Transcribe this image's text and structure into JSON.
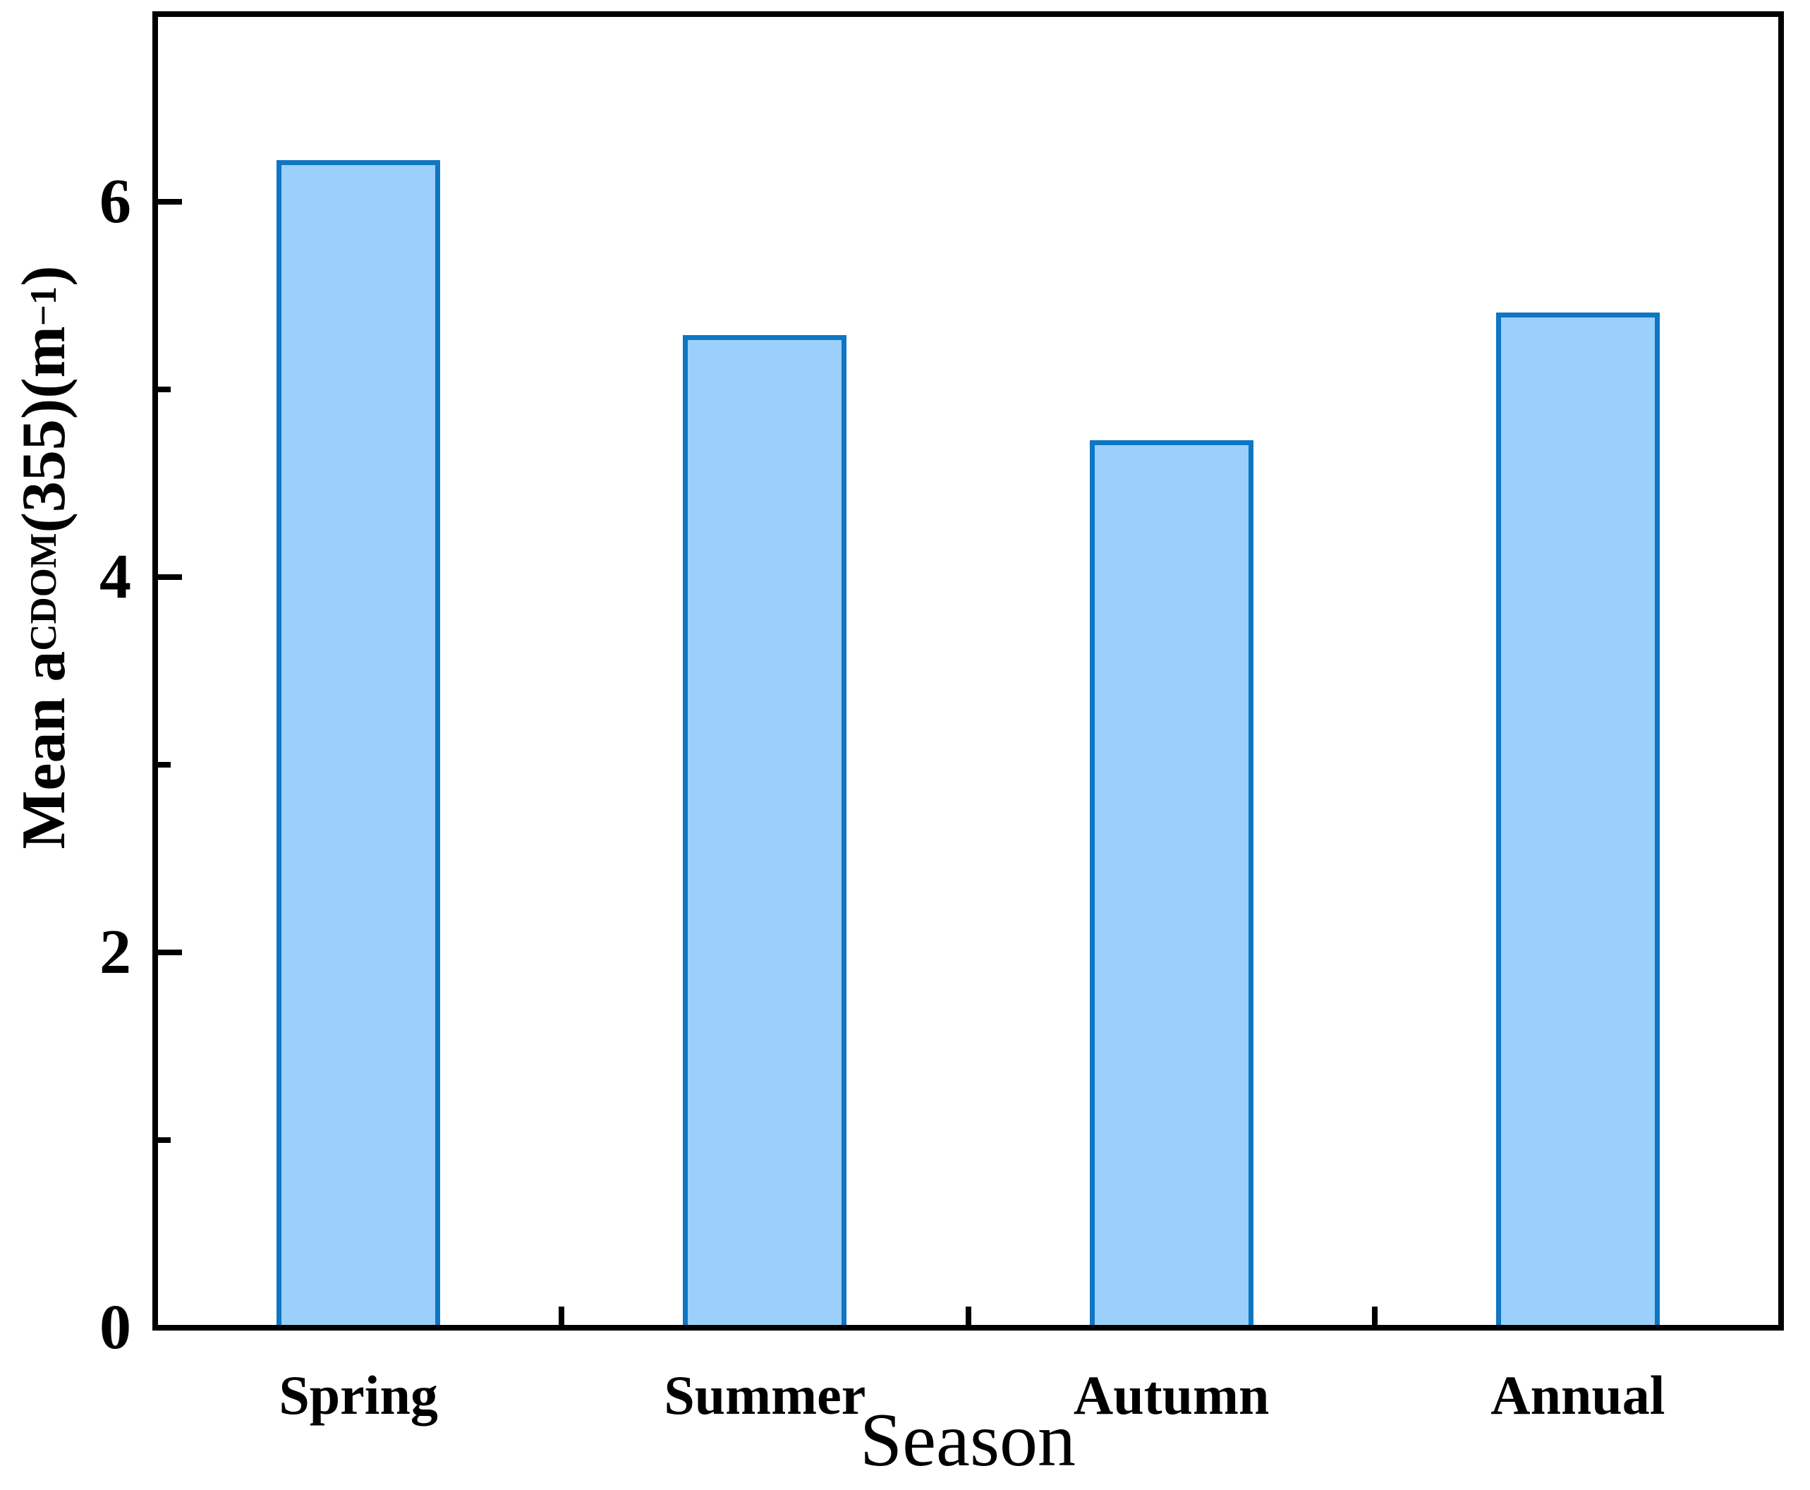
{
  "chart_data": {
    "type": "bar",
    "title": "",
    "xlabel": "Season",
    "ylabel_plain": "Mean a_CDOM(355)(m^−1)",
    "ylabel_parts": [
      {
        "text": "Mean a"
      },
      {
        "text": "CDOM",
        "style": "sub"
      },
      {
        "text": "(355)(m"
      },
      {
        "text": "−1",
        "style": "sup"
      },
      {
        "text": ")"
      }
    ],
    "categories": [
      "Spring",
      "Summer",
      "Autumn",
      "Annual"
    ],
    "values": [
      6.22,
      5.29,
      4.73,
      5.41
    ],
    "ylim": [
      0,
      7
    ],
    "yticks_major": [
      0,
      2,
      4,
      6
    ],
    "yticks_minor": [
      1,
      3,
      5
    ],
    "grid": false,
    "legend": false,
    "colors": {
      "bar_fill": "#9bcffc",
      "bar_border": "#0e76c2",
      "axis": "#000000",
      "background": "#ffffff"
    }
  }
}
